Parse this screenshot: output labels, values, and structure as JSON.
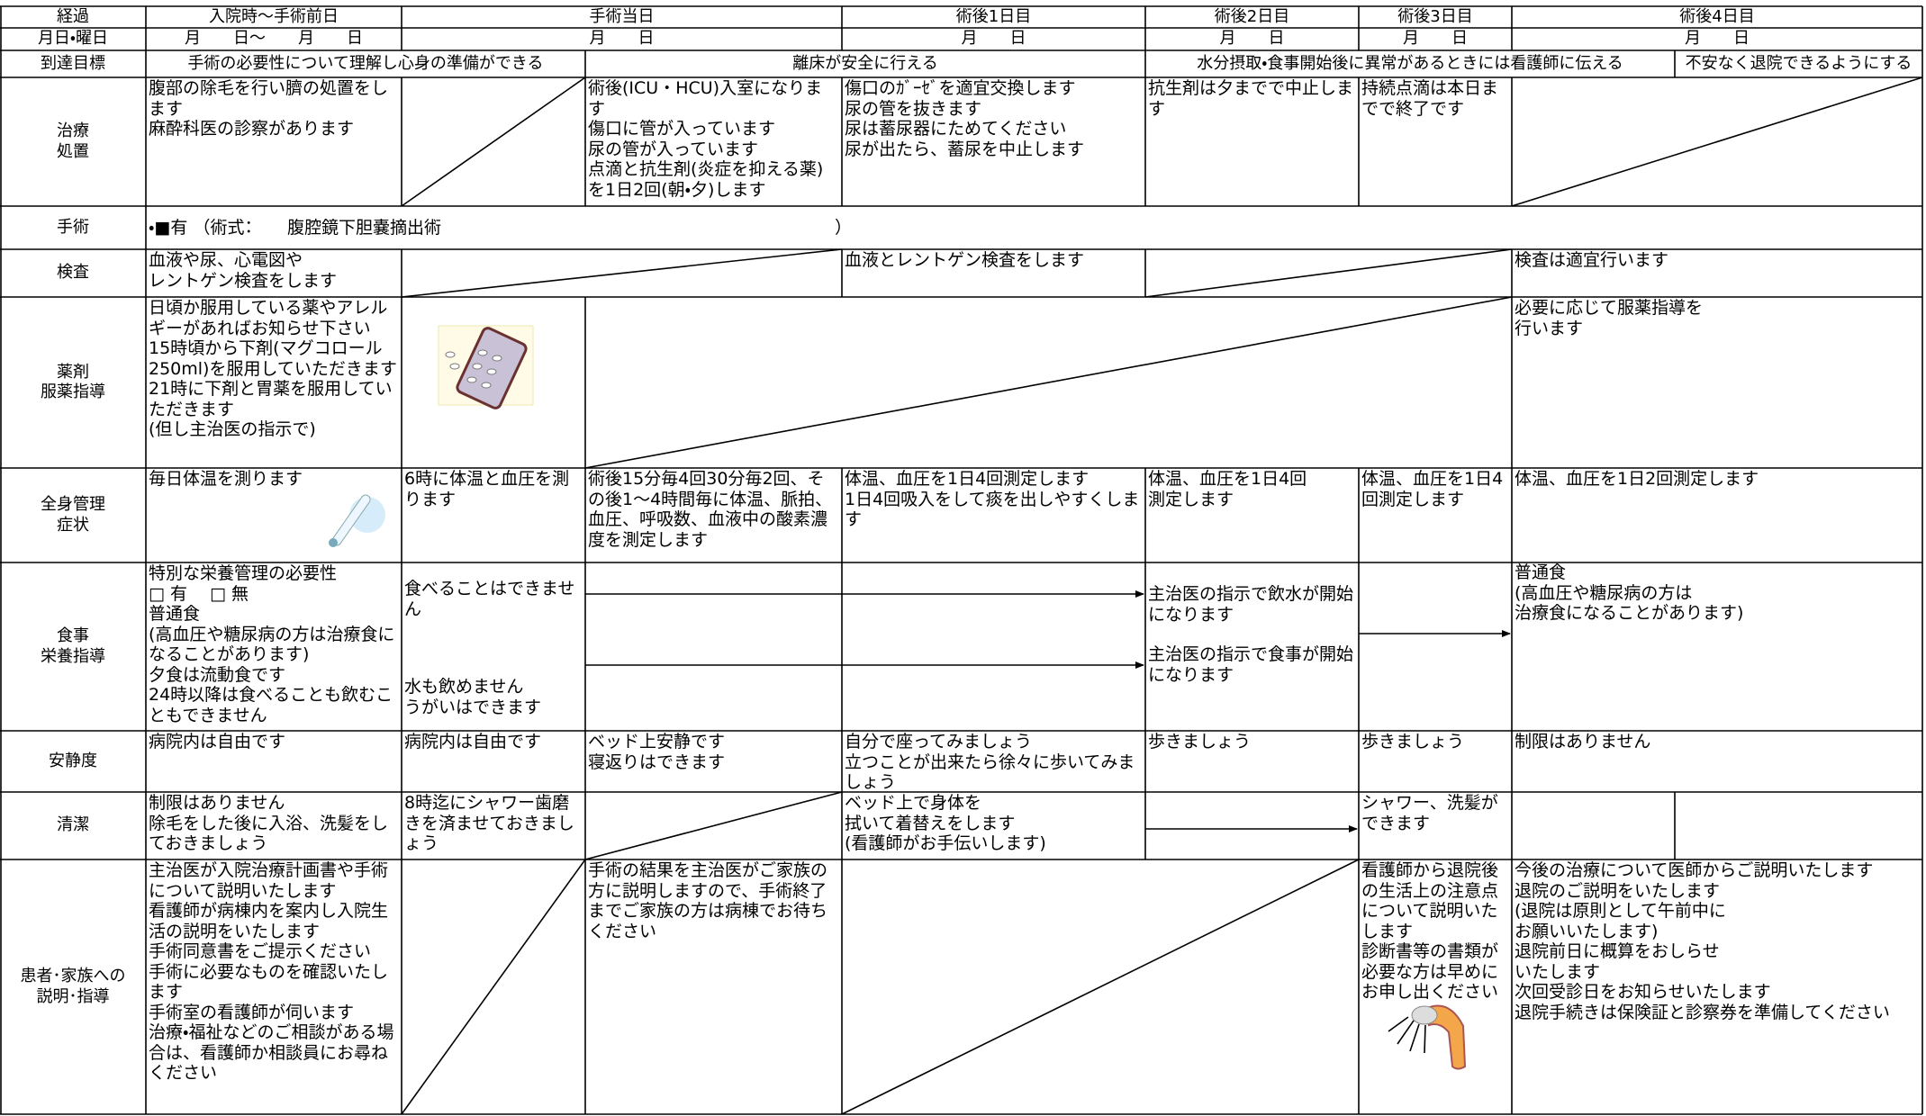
{
  "header": {
    "labels": [
      "経過",
      "入院時～手術前日",
      "手術当日",
      "術後1日目",
      "術後2日目",
      "術後3日目",
      "術後4日目"
    ],
    "dates": [
      "月日・曜日",
      "月　　日～　　月　　日",
      "月　　日",
      "月　　日",
      "月　　日",
      "月　　日",
      "月　　日"
    ]
  },
  "goals": {
    "label": "到達目標",
    "items": [
      "手術の必要性について理解し心身の準備ができる",
      "離床が安全に行える",
      "水分摂取・食事開始後に異常があるときには看護師に伝える",
      "不安なく退院できるようにする"
    ]
  },
  "rows": [
    {
      "label": [
        "治療",
        "処置"
      ],
      "cells": [
        [
          "腹部の除毛を行い臍の処置をします",
          "麻酔科医の診察があります"
        ],
        [
          "術後(ICU・HCU)入室になります",
          "傷口に管が入っています",
          "尿の管が入っています",
          "点滴と抗生剤(炎症を抑える薬)を1日2回(朝・夕)します"
        ],
        [
          "傷口のｶﾞｰｾﾞを適宜交換します",
          "尿の管を抜きます",
          "尿は蓄尿器にためてください",
          "尿が出たら、蓄尿を中止します"
        ],
        [
          "抗生剤は夕までで中止します"
        ],
        [
          "持続点滴は本日までで終了です"
        ]
      ]
    },
    {
      "label": [
        "手術"
      ],
      "cells": [
        [
          "・■有 （術式：　　腹腔鏡下胆嚢摘出術　　　　　　　　　　　　　　　　　　　　　　　）"
        ]
      ]
    },
    {
      "label": [
        "検査"
      ],
      "cells": [
        [
          "血液や尿、心電図や",
          "レントゲン検査をします"
        ],
        [
          "血液とレントゲン検査をします"
        ],
        [
          "検査は適宜行います"
        ]
      ]
    },
    {
      "label": [
        "薬剤",
        "服薬指導"
      ],
      "cells": [
        [
          "日頃か服用している薬やアレルギーがあればお知らせ下さい",
          "15時頃から下剤(マグコロール250ml)を服用していただきます",
          "21時に下剤と胃薬を服用していただきます",
          "(但し主治医の指示で)"
        ],
        [
          "必要に応じて服薬指導を",
          "行います"
        ]
      ]
    },
    {
      "label": [
        "全身管理",
        "症状"
      ],
      "cells": [
        [
          "毎日体温を測ります"
        ],
        [
          "6時に体温と血圧を測ります"
        ],
        [
          "術後15分毎4回30分毎2回、その後1～4時間毎に体温、脈拍、血圧、呼吸数、血液中の酸素濃度を測定します"
        ],
        [
          "体温、血圧を1日4回測定します",
          "1日4回吸入をして痰を出しやすくします"
        ],
        [
          "体温、血圧を1日4回",
          "測定します"
        ],
        [
          "体温、血圧を1日4回測定します"
        ],
        [
          "体温、血圧を1日2回測定します"
        ]
      ]
    },
    {
      "label": [
        "食事",
        "栄養指導"
      ],
      "cells": [
        [
          "特別な栄養管理の必要性",
          "□ 有　 □ 無",
          "普通食",
          "(高血圧や糖尿病の方は治療食になることがあります)",
          "夕食は流動食です",
          "24時以降は食べることも飲むこともできません"
        ],
        [
          "食べることはできません",
          "水も飲めません",
          "うがいはできます"
        ],
        [
          "主治医の指示で飲水が開始になります",
          "主治医の指示で食事が開始になります"
        ],
        [
          "普通食",
          "(高血圧や糖尿病の方は",
          "治療食になることがあります)"
        ]
      ]
    },
    {
      "label": [
        "安静度"
      ],
      "cells": [
        [
          "病院内は自由です"
        ],
        [
          "病院内は自由です"
        ],
        [
          "ベッド上安静です",
          "寝返りはできます"
        ],
        [
          "自分で座ってみましょう",
          "立つことが出来たら徐々に歩いてみましょう"
        ],
        [
          "歩きましょう"
        ],
        [
          "歩きましょう"
        ],
        [
          "制限はありません"
        ]
      ]
    },
    {
      "label": [
        "清潔"
      ],
      "cells": [
        [
          "制限はありません",
          "除毛をした後に入浴、洗髪をしておきましょう"
        ],
        [
          "8時迄にシャワー歯磨きを済ませておきましょう"
        ],
        [
          "ベッド上で身体を",
          "拭いて着替えをします",
          "(看護師がお手伝いします)"
        ],
        [
          "シャワー、洗髪ができます"
        ]
      ]
    },
    {
      "label": [
        "患者･家族への",
        "説明･指導"
      ],
      "cells": [
        [
          "主治医が入院治療計画書や手術について説明いたします",
          "看護師が病棟内を案内し入院生活の説明をいたします",
          "手術同意書をご提示ください",
          "手術に必要なものを確認いたします",
          "手術室の看護師が伺います",
          "治療・福祉などのご相談がある場合は、看護師か相談員にお尋ねください"
        ],
        [
          "手術の結果を主治医がご家族の方に説明しますので、手術終了までご家族の方は病棟でお待ちください"
        ],
        [
          "看護師から退院後の生活上の注意点について説明いたします",
          "診断書等の書類が必要な方は早めにお申し出ください"
        ],
        [
          "今後の治療について医師からご説明いたします",
          "退院のご説明をいたします",
          "(退院は原則として午前中に",
          "お願いいたします)",
          "退院前日に概算をおしらせ",
          "いたします",
          "次回受診日をお知らせいたします",
          "退院手続きは保険証と診察券を準備してください"
        ]
      ]
    }
  ]
}
